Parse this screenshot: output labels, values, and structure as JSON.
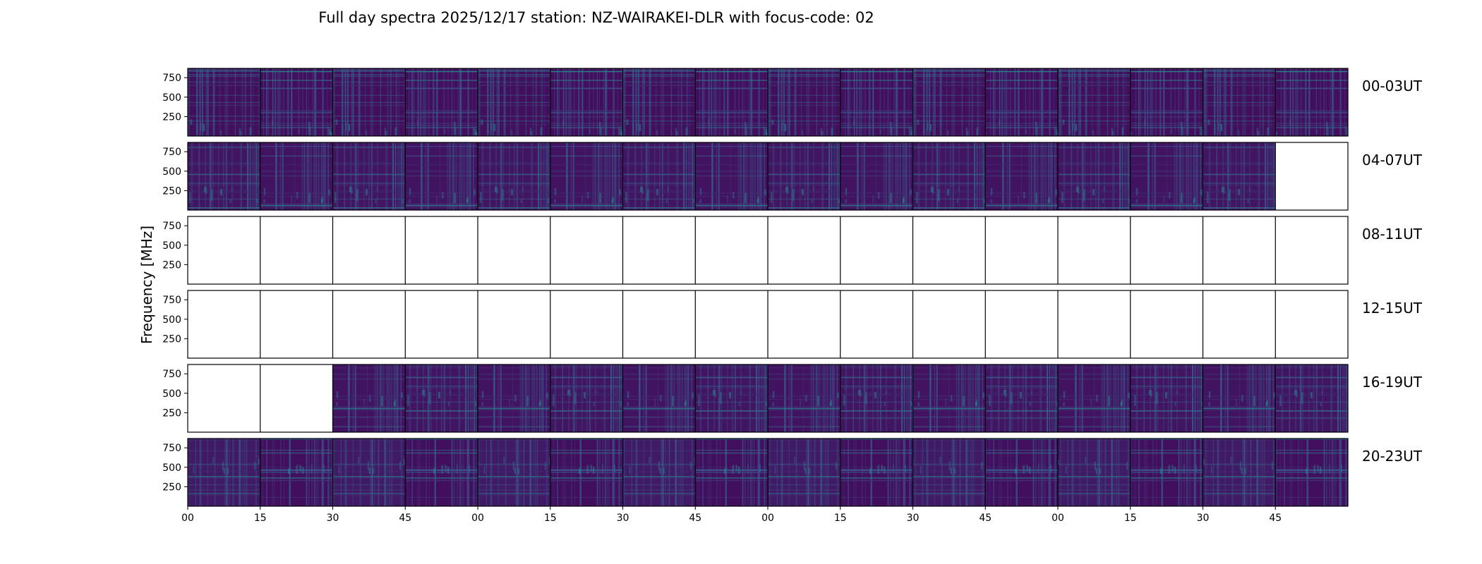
{
  "chart_data": {
    "type": "heatmap",
    "title": "Full day spectra 2025/12/17 station: NZ-WAIRAKEI-DLR with focus-code: 02",
    "ylabel": "Frequency [MHz]",
    "xlabel": "",
    "ylim": [
      0,
      870
    ],
    "y_ticks": [
      750,
      500,
      250
    ],
    "y_tick_labels": [
      "750",
      "500",
      "250"
    ],
    "x_tick_labels": [
      "00",
      "15",
      "30",
      "45",
      "00",
      "15",
      "30",
      "45",
      "00",
      "15",
      "30",
      "45",
      "00",
      "15",
      "30",
      "45"
    ],
    "columns_per_row": 16,
    "minutes_per_panel": 15,
    "colormap": [
      "#440154",
      "#3b528b",
      "#21918c",
      "#5ec962",
      "#fde725"
    ],
    "rows": [
      {
        "label": "00-03UT",
        "data_panels": [
          true,
          true,
          true,
          true,
          true,
          true,
          true,
          true,
          true,
          true,
          true,
          true,
          true,
          true,
          true,
          true
        ]
      },
      {
        "label": "04-07UT",
        "data_panels": [
          true,
          true,
          true,
          true,
          true,
          true,
          true,
          true,
          true,
          true,
          true,
          true,
          true,
          true,
          true,
          false
        ]
      },
      {
        "label": "08-11UT",
        "data_panels": [
          false,
          false,
          false,
          false,
          false,
          false,
          false,
          false,
          false,
          false,
          false,
          false,
          false,
          false,
          false,
          false
        ]
      },
      {
        "label": "12-15UT",
        "data_panels": [
          false,
          false,
          false,
          false,
          false,
          false,
          false,
          false,
          false,
          false,
          false,
          false,
          false,
          false,
          false,
          false
        ]
      },
      {
        "label": "16-19UT",
        "data_panels": [
          false,
          false,
          true,
          true,
          true,
          true,
          true,
          true,
          true,
          true,
          true,
          true,
          true,
          true,
          true,
          true
        ]
      },
      {
        "label": "20-23UT",
        "data_panels": [
          true,
          true,
          true,
          true,
          true,
          true,
          true,
          true,
          true,
          true,
          true,
          true,
          true,
          true,
          true,
          true
        ]
      }
    ]
  }
}
